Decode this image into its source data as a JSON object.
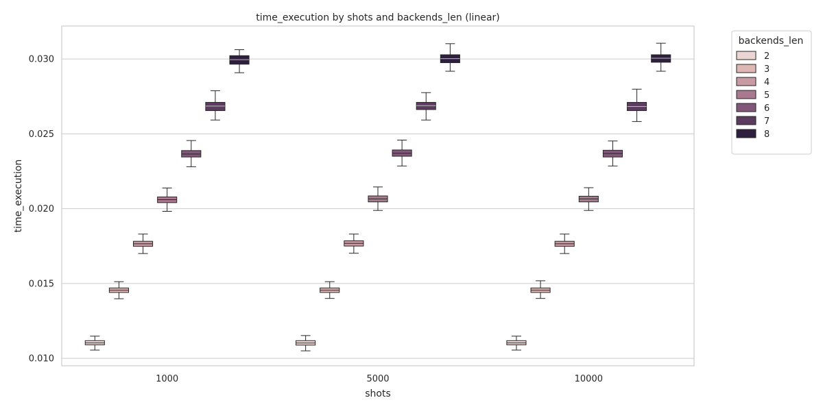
{
  "chart_data": {
    "type": "box",
    "title": "time_execution by shots and backends_len (linear)",
    "xlabel": "shots",
    "ylabel": "time_execution",
    "categories": [
      "1000",
      "5000",
      "10000"
    ],
    "ylim": [
      0.0095,
      0.0322
    ],
    "yticks": [
      0.01,
      0.015,
      0.02,
      0.025,
      0.03
    ],
    "ytick_labels": [
      "0.010",
      "0.015",
      "0.020",
      "0.025",
      "0.030"
    ],
    "grid": "horizontal",
    "legend": {
      "title": "backends_len",
      "placement": "outside-top-right"
    },
    "series": [
      {
        "name": "2",
        "color": "#ecd6d3",
        "boxes": [
          {
            "whislo": 0.01055,
            "q1": 0.0109,
            "med": 0.01103,
            "q3": 0.01118,
            "whishi": 0.01148
          },
          {
            "whislo": 0.0105,
            "q1": 0.01088,
            "med": 0.01102,
            "q3": 0.01118,
            "whishi": 0.01152
          },
          {
            "whislo": 0.01055,
            "q1": 0.0109,
            "med": 0.01103,
            "q3": 0.01118,
            "whishi": 0.01148
          }
        ]
      },
      {
        "name": "3",
        "color": "#deb6b4",
        "boxes": [
          {
            "whislo": 0.01398,
            "q1": 0.0144,
            "med": 0.01455,
            "q3": 0.0147,
            "whishi": 0.01512
          },
          {
            "whislo": 0.014,
            "q1": 0.0144,
            "med": 0.01455,
            "q3": 0.0147,
            "whishi": 0.01512
          },
          {
            "whislo": 0.014,
            "q1": 0.0144,
            "med": 0.01455,
            "q3": 0.0147,
            "whishi": 0.01518
          }
        ]
      },
      {
        "name": "4",
        "color": "#c89aa4",
        "boxes": [
          {
            "whislo": 0.017,
            "q1": 0.01748,
            "med": 0.01765,
            "q3": 0.01782,
            "whishi": 0.0183
          },
          {
            "whislo": 0.01702,
            "q1": 0.0175,
            "med": 0.01768,
            "q3": 0.01785,
            "whishi": 0.0183
          },
          {
            "whislo": 0.017,
            "q1": 0.01748,
            "med": 0.01765,
            "q3": 0.01782,
            "whishi": 0.0183
          }
        ]
      },
      {
        "name": "5",
        "color": "#a9798f",
        "boxes": [
          {
            "whislo": 0.01982,
            "q1": 0.0204,
            "med": 0.0206,
            "q3": 0.02078,
            "whishi": 0.02138
          },
          {
            "whislo": 0.01988,
            "q1": 0.02045,
            "med": 0.02065,
            "q3": 0.02085,
            "whishi": 0.02145
          },
          {
            "whislo": 0.01988,
            "q1": 0.02045,
            "med": 0.02065,
            "q3": 0.02083,
            "whishi": 0.0214
          }
        ]
      },
      {
        "name": "6",
        "color": "#81587a",
        "boxes": [
          {
            "whislo": 0.0228,
            "q1": 0.02345,
            "med": 0.02365,
            "q3": 0.02388,
            "whishi": 0.02455
          },
          {
            "whislo": 0.02285,
            "q1": 0.0235,
            "med": 0.0237,
            "q3": 0.02392,
            "whishi": 0.02458
          },
          {
            "whislo": 0.02285,
            "q1": 0.02345,
            "med": 0.02368,
            "q3": 0.0239,
            "whishi": 0.02452
          }
        ]
      },
      {
        "name": "7",
        "color": "#5b3c5f",
        "boxes": [
          {
            "whislo": 0.02592,
            "q1": 0.02655,
            "med": 0.02685,
            "q3": 0.0271,
            "whishi": 0.02788
          },
          {
            "whislo": 0.02592,
            "q1": 0.02662,
            "med": 0.02688,
            "q3": 0.0271,
            "whishi": 0.02775
          },
          {
            "whislo": 0.02582,
            "q1": 0.02655,
            "med": 0.02682,
            "q3": 0.0271,
            "whishi": 0.02798
          }
        ]
      },
      {
        "name": "8",
        "color": "#2e1f3e",
        "boxes": [
          {
            "whislo": 0.02908,
            "q1": 0.02965,
            "med": 0.02995,
            "q3": 0.03022,
            "whishi": 0.03062
          },
          {
            "whislo": 0.02918,
            "q1": 0.02975,
            "med": 0.03002,
            "q3": 0.03028,
            "whishi": 0.03102
          },
          {
            "whislo": 0.02918,
            "q1": 0.02978,
            "med": 0.03005,
            "q3": 0.03028,
            "whishi": 0.03105
          }
        ]
      }
    ]
  }
}
